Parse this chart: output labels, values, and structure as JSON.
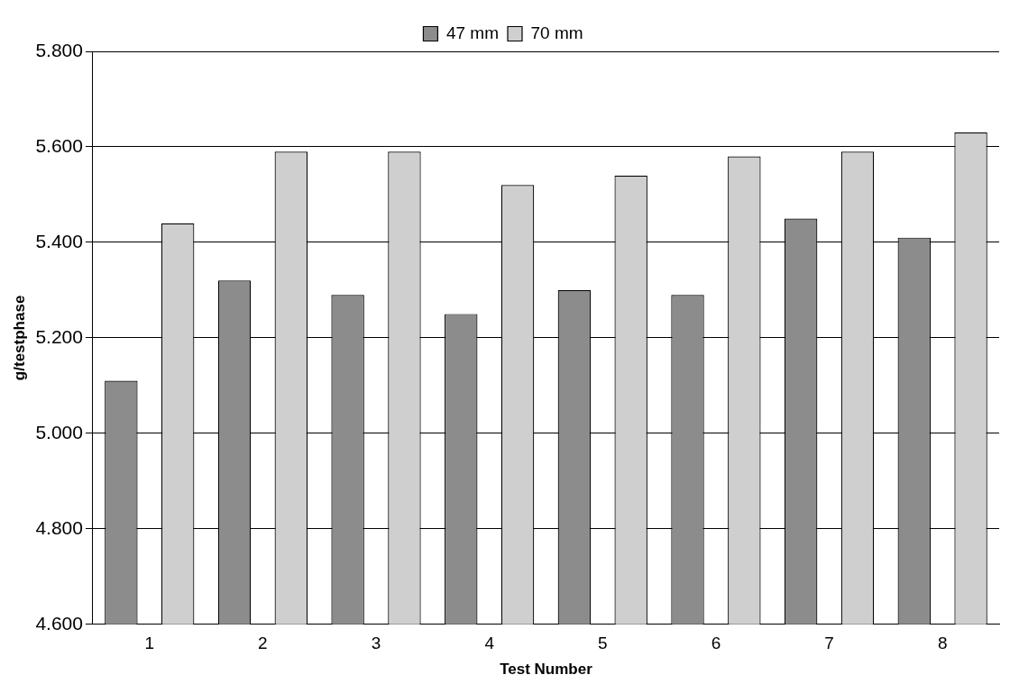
{
  "chart_data": {
    "type": "bar",
    "xlabel": "Test Number",
    "ylabel": "g/testphase",
    "categories": [
      "1",
      "2",
      "3",
      "4",
      "5",
      "6",
      "7",
      "8"
    ],
    "series": [
      {
        "name": "47 mm",
        "color": "#8c8c8c",
        "values": [
          5.11,
          5.32,
          5.29,
          5.25,
          5.3,
          5.29,
          5.45,
          5.41
        ]
      },
      {
        "name": "70 mm",
        "color": "#cfcfcf",
        "values": [
          5.44,
          5.59,
          5.59,
          5.52,
          5.54,
          5.58,
          5.59,
          5.63
        ]
      }
    ],
    "ylim": [
      4.6,
      5.8
    ],
    "yticks": [
      {
        "value": 4.6,
        "label": "4.600"
      },
      {
        "value": 4.8,
        "label": "4.800"
      },
      {
        "value": 5.0,
        "label": "5.000"
      },
      {
        "value": 5.2,
        "label": "5.200"
      },
      {
        "value": 5.4,
        "label": "5.400"
      },
      {
        "value": 5.6,
        "label": "5.600"
      },
      {
        "value": 5.8,
        "label": "5.800"
      }
    ],
    "grid": "y",
    "legend": "top"
  }
}
